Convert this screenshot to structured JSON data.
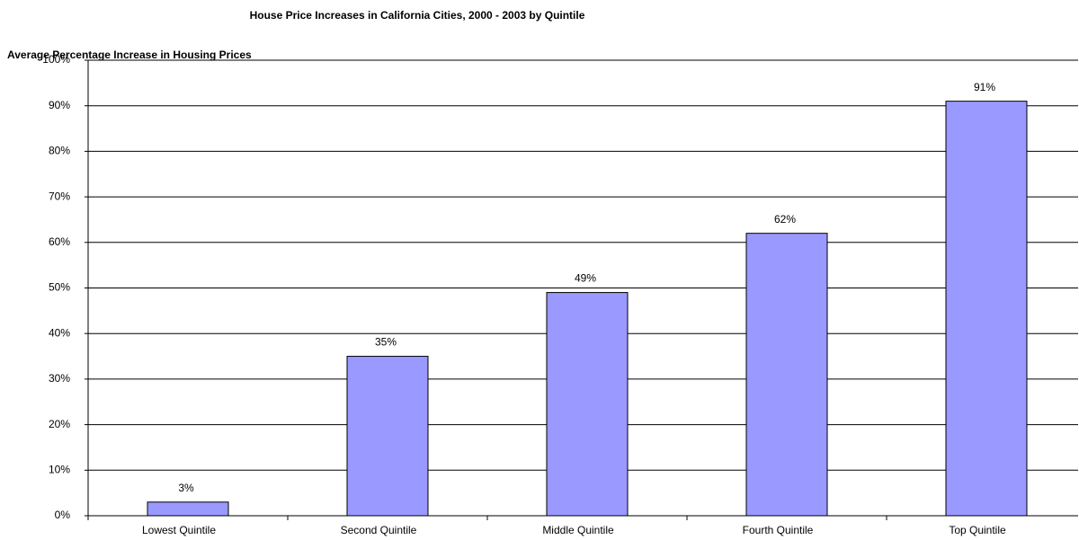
{
  "chart_data": {
    "type": "bar",
    "title": "House Price Increases in California Cities, 2000 - 2003 by Quintile",
    "y_label": "Average Percentage Increase in Housing Prices",
    "categories": [
      "Lowest Quintile",
      "Second Quintile",
      "Middle Quintile",
      "Fourth Quintile",
      "Top Quintile"
    ],
    "values": [
      3,
      35,
      49,
      62,
      91
    ],
    "value_labels": [
      "3%",
      "35%",
      "49%",
      "62%",
      "91%"
    ],
    "color": "#9999ff",
    "ylim": [
      0,
      100
    ],
    "yticks": [
      {
        "value": 0,
        "label": "0%"
      },
      {
        "value": 10,
        "label": "10%"
      },
      {
        "value": 20,
        "label": "20%"
      },
      {
        "value": 30,
        "label": "30%"
      },
      {
        "value": 40,
        "label": "40%"
      },
      {
        "value": 50,
        "label": "50%"
      },
      {
        "value": 60,
        "label": "60%"
      },
      {
        "value": 70,
        "label": "70%"
      },
      {
        "value": 80,
        "label": "80%"
      },
      {
        "value": 90,
        "label": "90%"
      },
      {
        "value": 100,
        "label": "100%"
      }
    ],
    "grid": true
  }
}
